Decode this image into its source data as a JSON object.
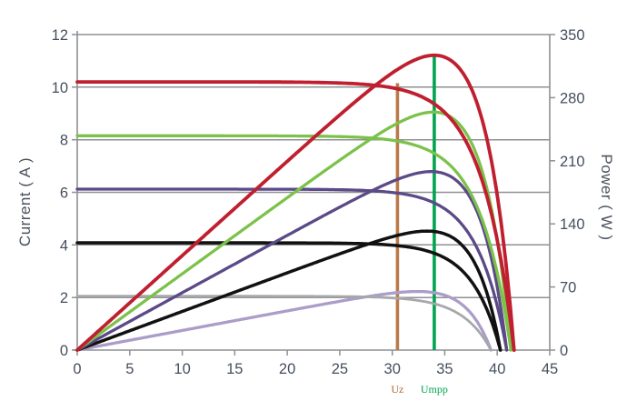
{
  "chart_data": {
    "type": "line",
    "title": "",
    "description": "Solar module I-V and P-V characteristic curves at five irradiance levels",
    "x_axis": {
      "label": "",
      "min": 0,
      "max": 45,
      "ticks": [
        0,
        5,
        10,
        15,
        20,
        25,
        30,
        35,
        40,
        45
      ]
    },
    "y_left_axis": {
      "label": "Current ( A )",
      "min": 0,
      "max": 12,
      "ticks": [
        0,
        2,
        4,
        6,
        8,
        10,
        12
      ]
    },
    "y_right_axis": {
      "label": "Power ( W )",
      "min": 0,
      "max": 350,
      "ticks": [
        0,
        70,
        140,
        210,
        280,
        350
      ]
    },
    "grid": "horizontal",
    "legend": "none",
    "series": [
      {
        "name": "curve-pair-1",
        "isc_a": 10.2,
        "voc_v": 41.6,
        "vmpp_v": 34.0,
        "pmax_w": 327,
        "iv_color": "#bf1f2e",
        "pv_color": "#bf1f2e"
      },
      {
        "name": "curve-pair-2",
        "isc_a": 8.15,
        "voc_v": 41.3,
        "vmpp_v": 33.9,
        "pmax_w": 264,
        "iv_color": "#7cc24a",
        "pv_color": "#7cc24a"
      },
      {
        "name": "curve-pair-3",
        "isc_a": 6.12,
        "voc_v": 40.9,
        "vmpp_v": 33.7,
        "pmax_w": 198,
        "iv_color": "#5b4a87",
        "pv_color": "#5b4a87"
      },
      {
        "name": "curve-pair-4",
        "isc_a": 4.08,
        "voc_v": 40.3,
        "vmpp_v": 33.3,
        "pmax_w": 132,
        "iv_color": "#111111",
        "pv_color": "#111111"
      },
      {
        "name": "curve-pair-5",
        "isc_a": 2.05,
        "voc_v": 39.4,
        "vmpp_v": 32.4,
        "pmax_w": 65,
        "iv_color": "#a6a8ab",
        "pv_color": "#ab9dc8"
      }
    ],
    "markers": [
      {
        "label": "Uz",
        "x_v": 30.5,
        "top_a": 10.15,
        "color": "#b87a4b",
        "label_color": "#a96a33"
      },
      {
        "label": "Umpp",
        "x_v": 34.0,
        "top_a": 11.21,
        "color": "#00a451",
        "label_color": "#00a451"
      }
    ]
  },
  "colors": {
    "axis": "#8e9093",
    "tick_text": "#454f5e",
    "background": "#ffffff"
  }
}
